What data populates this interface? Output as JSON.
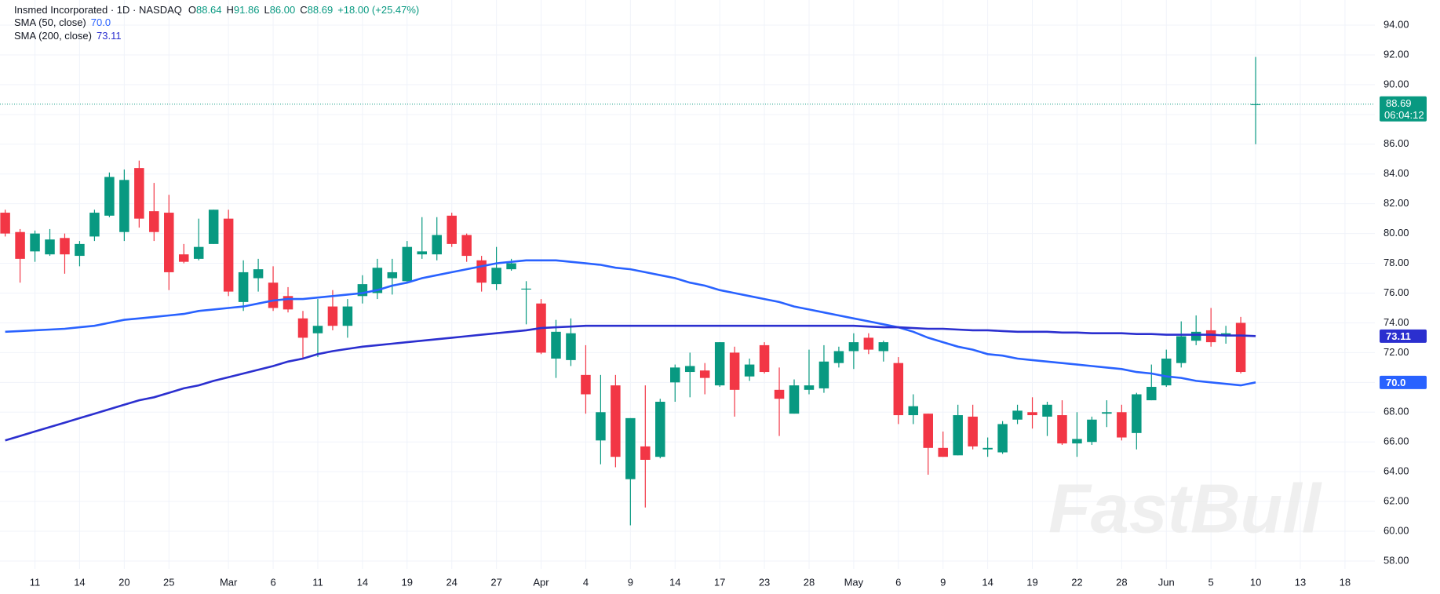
{
  "chart_data": {
    "type": "candlestick",
    "title": "Insmed Incorporated · 1D · NASDAQ",
    "header_values": [
      {
        "key": "O",
        "text": "88.64"
      },
      {
        "key": "H",
        "text": "91.86"
      },
      {
        "key": "L",
        "text": "86.00"
      },
      {
        "key": "C",
        "text": "88.69"
      }
    ],
    "change": "+18.00 (+25.47%)",
    "countdown": "06:04:12",
    "watermark": "FastBull",
    "up_color": "#089981",
    "down_color": "#f23645",
    "grid": true,
    "categories": [
      null,
      null,
      "11",
      null,
      null,
      "14",
      null,
      null,
      "20",
      null,
      null,
      "25",
      null,
      null,
      null,
      "Mar",
      null,
      null,
      "6",
      null,
      null,
      "11",
      null,
      null,
      "14",
      null,
      null,
      "19",
      null,
      null,
      "24",
      null,
      null,
      "27",
      null,
      null,
      "Apr",
      null,
      null,
      "4",
      null,
      null,
      "9",
      null,
      null,
      "14",
      null,
      null,
      "17",
      null,
      null,
      "23",
      null,
      null,
      "28",
      null,
      null,
      "May",
      null,
      null,
      "6",
      null,
      null,
      "9",
      null,
      null,
      "14",
      null,
      null,
      "19",
      null,
      null,
      "22",
      null,
      null,
      "28",
      null,
      null,
      "Jun",
      null,
      null,
      "5",
      null,
      null,
      "10",
      null,
      null,
      "13",
      null,
      null,
      "18"
    ],
    "ohlc": {
      "open": [
        81.4,
        80.1,
        78.8,
        78.6,
        79.7,
        78.5,
        79.8,
        81.2,
        80.1,
        84.4,
        81.5,
        81.4,
        78.6,
        78.3,
        79.3,
        81.0,
        75.4,
        77.0,
        76.7,
        75.8,
        74.3,
        73.3,
        75.1,
        73.8,
        75.8,
        76.0,
        77.0,
        76.8,
        78.6,
        78.6,
        81.2,
        79.9,
        78.2,
        76.6,
        77.6,
        76.3,
        75.3,
        71.6,
        71.5,
        70.5,
        66.1,
        69.8,
        63.5,
        65.7,
        65.0,
        70.0,
        70.7,
        70.8,
        69.8,
        72.0,
        70.4,
        72.5,
        69.5,
        67.9,
        69.5,
        69.6,
        71.3,
        72.1,
        73.0,
        72.1,
        71.3,
        67.8,
        67.9,
        65.6,
        65.1,
        67.7,
        65.5,
        65.3,
        67.5,
        68.0,
        67.7,
        67.8,
        65.9,
        66.0,
        67.9,
        68.0,
        66.6,
        68.8,
        69.8,
        71.3,
        72.8,
        73.5,
        73.1,
        74.0,
        88.64,
        null,
        null,
        null,
        null,
        null,
        null
      ],
      "high": [
        81.6,
        80.3,
        80.2,
        80.3,
        80.0,
        79.5,
        81.6,
        84.1,
        84.3,
        84.9,
        83.4,
        82.6,
        79.3,
        81.0,
        81.6,
        81.6,
        78.2,
        78.3,
        77.8,
        76.4,
        74.8,
        75.6,
        76.2,
        75.6,
        77.2,
        78.3,
        78.3,
        79.5,
        81.1,
        81.1,
        81.4,
        80.0,
        78.5,
        79.1,
        78.3,
        76.8,
        75.6,
        74.2,
        74.3,
        72.5,
        70.5,
        70.5,
        67.6,
        69.8,
        68.9,
        71.2,
        72.0,
        71.3,
        72.7,
        72.4,
        71.6,
        72.7,
        71.0,
        70.2,
        72.2,
        72.5,
        72.4,
        73.3,
        73.3,
        72.8,
        71.7,
        69.2,
        67.9,
        66.7,
        68.5,
        68.5,
        66.3,
        67.4,
        68.5,
        69.0,
        68.7,
        68.8,
        68.0,
        67.7,
        68.8,
        68.5,
        69.3,
        71.2,
        72.2,
        74.1,
        74.5,
        75.0,
        73.8,
        74.4,
        91.86,
        null,
        null,
        null,
        null,
        null,
        null
      ],
      "low": [
        79.8,
        76.7,
        78.1,
        78.5,
        77.3,
        77.8,
        79.5,
        81.1,
        79.5,
        80.4,
        79.5,
        76.2,
        78.0,
        78.2,
        79.3,
        75.8,
        74.8,
        76.1,
        74.8,
        74.7,
        71.6,
        71.7,
        73.5,
        73.0,
        75.3,
        75.6,
        75.9,
        76.7,
        78.3,
        78.2,
        79.1,
        78.1,
        76.1,
        76.2,
        77.5,
        73.9,
        71.9,
        70.3,
        71.1,
        67.9,
        64.5,
        64.3,
        60.4,
        61.6,
        64.9,
        68.7,
        69.0,
        69.2,
        69.7,
        67.7,
        70.1,
        70.6,
        66.4,
        67.9,
        69.2,
        69.3,
        71.0,
        70.9,
        71.9,
        71.4,
        67.2,
        67.2,
        63.8,
        65.0,
        65.1,
        65.5,
        65.0,
        65.2,
        67.2,
        66.9,
        66.4,
        65.8,
        65.0,
        65.8,
        67.0,
        66.1,
        65.5,
        68.8,
        69.7,
        71.0,
        72.5,
        72.4,
        72.6,
        70.6,
        86,
        null,
        null,
        null,
        null,
        null,
        null
      ],
      "close": [
        80.0,
        78.3,
        80.0,
        79.6,
        78.6,
        79.3,
        81.4,
        83.8,
        83.6,
        81.0,
        80.1,
        77.4,
        78.1,
        79.1,
        81.6,
        76.1,
        77.4,
        77.6,
        75.0,
        74.9,
        73.0,
        73.8,
        73.8,
        75.1,
        76.6,
        77.7,
        77.4,
        79.1,
        78.8,
        79.9,
        79.3,
        78.5,
        76.7,
        77.7,
        78.0,
        76.3,
        72.0,
        73.4,
        73.3,
        69.2,
        68.0,
        65.0,
        67.6,
        64.8,
        68.7,
        71.0,
        71.1,
        70.3,
        72.7,
        69.5,
        71.2,
        70.7,
        68.9,
        69.8,
        69.8,
        71.4,
        72.1,
        72.7,
        72.2,
        72.7,
        67.8,
        68.4,
        65.6,
        65.0,
        67.8,
        65.7,
        65.6,
        67.2,
        68.1,
        67.8,
        68.5,
        65.9,
        66.2,
        67.5,
        68.0,
        66.3,
        69.2,
        69.7,
        71.6,
        73.1,
        73.4,
        72.7,
        73.3,
        70.7,
        88.69,
        null,
        null,
        null,
        null,
        null,
        null
      ]
    },
    "series": [
      {
        "name": "SMA (50, close)",
        "color": "#2962ff",
        "value_label": "70.0",
        "values": [
          73.4,
          73.45,
          73.5,
          73.55,
          73.6,
          73.7,
          73.8,
          74.0,
          74.2,
          74.3,
          74.4,
          74.5,
          74.6,
          74.8,
          74.9,
          75.0,
          75.1,
          75.3,
          75.5,
          75.6,
          75.6,
          75.7,
          75.8,
          75.9,
          76.0,
          76.2,
          76.5,
          76.7,
          77.0,
          77.2,
          77.4,
          77.6,
          77.8,
          78.0,
          78.1,
          78.2,
          78.2,
          78.2,
          78.1,
          78.0,
          77.9,
          77.7,
          77.6,
          77.4,
          77.2,
          77.0,
          76.7,
          76.5,
          76.2,
          76.0,
          75.8,
          75.6,
          75.4,
          75.1,
          74.9,
          74.7,
          74.5,
          74.3,
          74.1,
          73.9,
          73.7,
          73.4,
          73.0,
          72.7,
          72.4,
          72.2,
          71.9,
          71.8,
          71.6,
          71.5,
          71.4,
          71.3,
          71.2,
          71.1,
          71.0,
          70.9,
          70.7,
          70.6,
          70.4,
          70.3,
          70.1,
          70.0,
          69.9,
          69.8,
          70.0,
          null,
          null,
          null,
          null,
          null,
          null
        ]
      },
      {
        "name": "SMA (200, close)",
        "color": "#2b2fcf",
        "value_label": "73.11",
        "values": [
          66.1,
          66.4,
          66.7,
          67.0,
          67.3,
          67.6,
          67.9,
          68.2,
          68.5,
          68.8,
          69.0,
          69.3,
          69.6,
          69.8,
          70.1,
          70.35,
          70.6,
          70.85,
          71.1,
          71.4,
          71.6,
          71.9,
          72.1,
          72.25,
          72.4,
          72.5,
          72.6,
          72.7,
          72.8,
          72.9,
          73.0,
          73.1,
          73.2,
          73.3,
          73.4,
          73.5,
          73.65,
          73.7,
          73.75,
          73.8,
          73.8,
          73.8,
          73.8,
          73.8,
          73.8,
          73.8,
          73.8,
          73.8,
          73.8,
          73.8,
          73.8,
          73.8,
          73.8,
          73.8,
          73.8,
          73.8,
          73.8,
          73.8,
          73.75,
          73.7,
          73.7,
          73.65,
          73.6,
          73.6,
          73.55,
          73.5,
          73.5,
          73.45,
          73.4,
          73.4,
          73.4,
          73.35,
          73.35,
          73.3,
          73.3,
          73.3,
          73.25,
          73.25,
          73.2,
          73.2,
          73.2,
          73.2,
          73.15,
          73.15,
          73.11,
          null,
          null,
          null,
          null,
          null,
          null
        ]
      }
    ],
    "ylim": [
      58,
      94
    ],
    "yticks": [
      {
        "value": 58,
        "label": "58.00"
      },
      {
        "value": 60,
        "label": "60.00"
      },
      {
        "value": 62,
        "label": "62.00"
      },
      {
        "value": 64,
        "label": "64.00"
      },
      {
        "value": 66,
        "label": "66.00"
      },
      {
        "value": 68,
        "label": "68.00"
      },
      {
        "value": 70,
        "label": "70.00"
      },
      {
        "value": 72,
        "label": "72.00"
      },
      {
        "value": 74,
        "label": "74.00"
      },
      {
        "value": 76,
        "label": "76.00"
      },
      {
        "value": 78,
        "label": "78.00"
      },
      {
        "value": 80,
        "label": "80.00"
      },
      {
        "value": 82,
        "label": "82.00"
      },
      {
        "value": 84,
        "label": "84.00"
      },
      {
        "value": 86,
        "label": "86.00"
      },
      {
        "value": 88,
        "label": "88.00"
      },
      {
        "value": 90,
        "label": "90.00"
      },
      {
        "value": 92,
        "label": "92.00"
      },
      {
        "value": 94,
        "label": "94.00"
      }
    ]
  }
}
